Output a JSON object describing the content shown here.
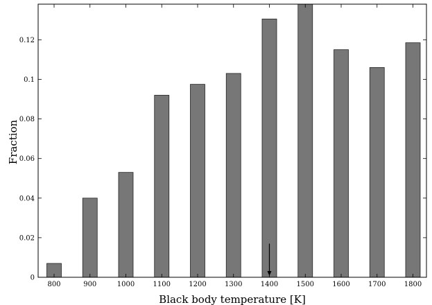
{
  "chart_data": {
    "type": "bar",
    "categories": [
      "800",
      "900",
      "1000",
      "1100",
      "1200",
      "1300",
      "1400",
      "1500",
      "1600",
      "1700",
      "1800"
    ],
    "values": [
      0.007,
      0.04,
      0.053,
      0.092,
      0.0975,
      0.103,
      0.1305,
      0.138,
      0.115,
      0.106,
      0.1185
    ],
    "xlabel": "Black body temperature [K]",
    "ylabel": "Fraction",
    "ylim": [
      0,
      0.138
    ],
    "yticks": [
      0,
      0.02,
      0.04,
      0.06,
      0.08,
      0.1,
      0.12
    ],
    "ytick_labels": [
      "0",
      "0.02",
      "0.04",
      "0.06",
      "0.08",
      "0.1",
      "0.12"
    ],
    "bar_color": "#777777",
    "grid": false,
    "annotation": {
      "type": "arrow",
      "category": "1400",
      "from": 0.017,
      "to": 0.0
    }
  }
}
